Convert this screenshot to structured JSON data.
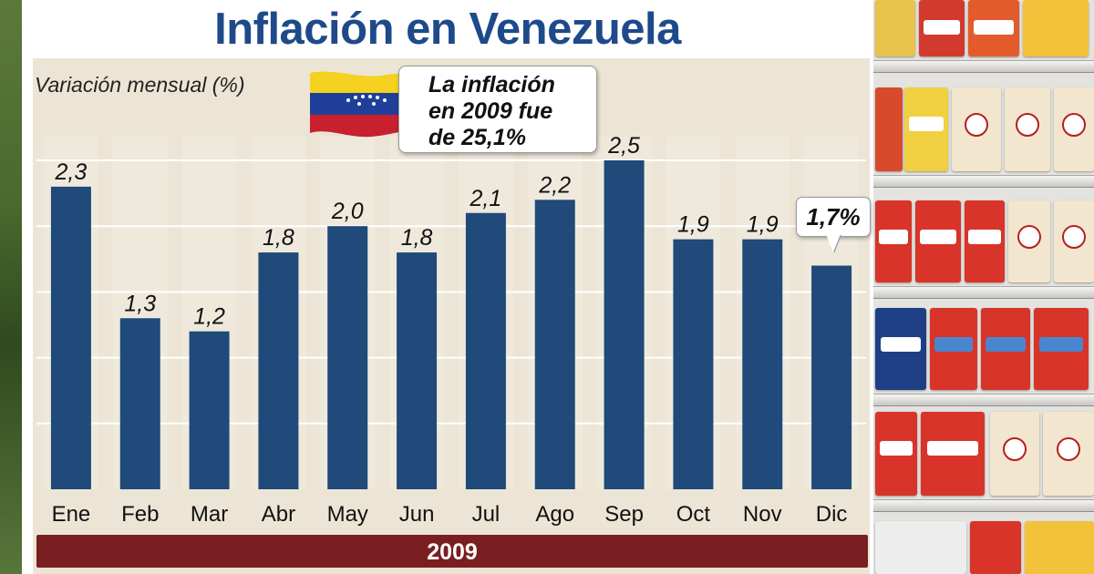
{
  "header": {
    "title": "Inflación en Venezuela"
  },
  "chart_data": {
    "type": "bar",
    "title": "Inflación en Venezuela",
    "ylabel": "Variación mensual (%)",
    "xlabel": "2009",
    "categories": [
      "Ene",
      "Feb",
      "Mar",
      "Abr",
      "May",
      "Jun",
      "Jul",
      "Ago",
      "Sep",
      "Oct",
      "Nov",
      "Dic"
    ],
    "values": [
      2.3,
      1.3,
      1.2,
      1.8,
      2.0,
      1.8,
      2.1,
      2.2,
      2.5,
      1.9,
      1.9,
      1.7
    ],
    "value_labels": [
      "2,3",
      "1,3",
      "1,2",
      "1,8",
      "2,0",
      "1,8",
      "2,1",
      "2,2",
      "2,5",
      "1,9",
      "1,9",
      ""
    ],
    "highlight_label": "1,7%",
    "ylim": [
      0,
      2.5
    ],
    "grid": true,
    "legend": "none",
    "bar_color": "#1f4a7a",
    "annotation": {
      "lines": [
        "La inflación",
        "en 2009 fue",
        "de 25,1%"
      ]
    },
    "year_band_label": "2009",
    "year_band_color": "#7a1f21"
  },
  "colors": {
    "title": "#1e4a8a",
    "plot_background": "#ece5d5",
    "flag": [
      "#f4d21f",
      "#1f3f9a",
      "#c8202c"
    ]
  }
}
